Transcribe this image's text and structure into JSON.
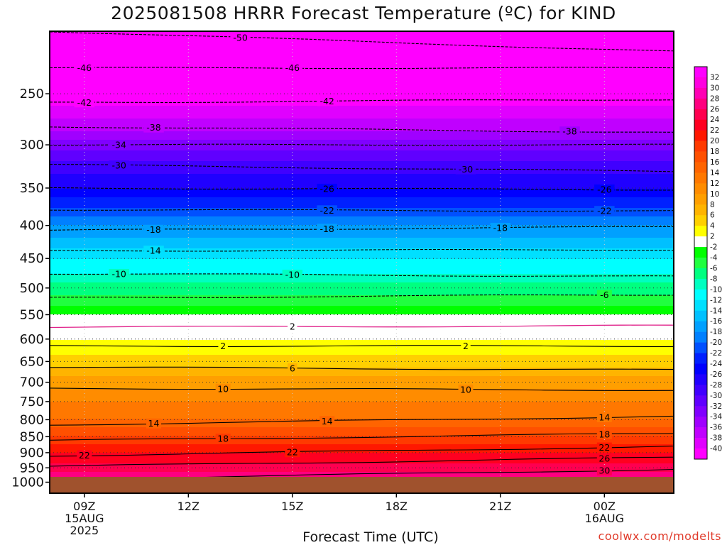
{
  "title": "2025081508 HRRR Forecast Temperature (ºC) for KIND",
  "xlabel": "Forecast Time (UTC)",
  "credit": "coolwx.com/modelts",
  "colorbar": {
    "labels": [
      "32",
      "30",
      "28",
      "26",
      "24",
      "22",
      "20",
      "18",
      "16",
      "14",
      "12",
      "10",
      "8",
      "6",
      "4",
      "2",
      "-2",
      "-4",
      "-6",
      "-8",
      "-10",
      "-12",
      "-14",
      "-16",
      "-18",
      "-20",
      "-22",
      "-24",
      "-26",
      "-28",
      "-30",
      "-32",
      "-34",
      "-36",
      "-38",
      "-40"
    ],
    "colors": [
      "#ff00ff",
      "#ff00e0",
      "#ff00b4",
      "#ff0080",
      "#ff0050",
      "#ff0020",
      "#ff1800",
      "#ff3a00",
      "#ff5000",
      "#ff6400",
      "#ff7800",
      "#ff8c00",
      "#ff9f00",
      "#ffb400",
      "#ffd000",
      "#ffff00",
      "#ffffff",
      "#00ff00",
      "#20ff40",
      "#00ff80",
      "#00ffc0",
      "#00ffff",
      "#00e0ff",
      "#00c0ff",
      "#00a0ff",
      "#0080ff",
      "#0050ff",
      "#0020ff",
      "#0000ff",
      "#2000ff",
      "#4000ff",
      "#6000ff",
      "#8000ff",
      "#a000ff",
      "#c000ff",
      "#e000ff",
      "#ff00ff"
    ]
  },
  "chart_data": {
    "type": "heatmap",
    "title": "2025081508 HRRR Forecast Temperature (ºC) for KIND",
    "xlabel": "Forecast Time (UTC)",
    "ylabel": "",
    "x_ticks": [
      {
        "label": "09Z",
        "sub": [
          "15AUG",
          "2025"
        ],
        "hour": 9
      },
      {
        "label": "12Z",
        "sub": [],
        "hour": 12
      },
      {
        "label": "15Z",
        "sub": [],
        "hour": 15
      },
      {
        "label": "18Z",
        "sub": [],
        "hour": 18
      },
      {
        "label": "21Z",
        "sub": [],
        "hour": 21
      },
      {
        "label": "00Z",
        "sub": [
          "16AUG"
        ],
        "hour": 24
      }
    ],
    "x_range_hours": [
      8,
      26
    ],
    "y_ticks": [
      250,
      300,
      350,
      400,
      450,
      500,
      550,
      600,
      650,
      700,
      750,
      800,
      850,
      900,
      950,
      1000
    ],
    "y_range_hPa": [
      200,
      1040
    ],
    "y_scale": "log",
    "grid": "dotted",
    "colorbar_range": [
      -40,
      32
    ],
    "temperature_profile": [
      {
        "p": 200,
        "t": -58
      },
      {
        "p": 215,
        "t": -52
      },
      {
        "p": 225,
        "t": -48
      },
      {
        "p": 250,
        "t": -42
      },
      {
        "p": 280,
        "t": -37
      },
      {
        "p": 300,
        "t": -33
      },
      {
        "p": 325,
        "t": -29
      },
      {
        "p": 350,
        "t": -26
      },
      {
        "p": 375,
        "t": -22
      },
      {
        "p": 400,
        "t": -18
      },
      {
        "p": 425,
        "t": -15
      },
      {
        "p": 450,
        "t": -12
      },
      {
        "p": 475,
        "t": -10
      },
      {
        "p": 500,
        "t": -7
      },
      {
        "p": 525,
        "t": -5
      },
      {
        "p": 550,
        "t": -2
      },
      {
        "p": 575,
        "t": 0
      },
      {
        "p": 600,
        "t": 2
      },
      {
        "p": 650,
        "t": 5
      },
      {
        "p": 700,
        "t": 9
      },
      {
        "p": 750,
        "t": 12
      },
      {
        "p": 800,
        "t": 14
      },
      {
        "p": 850,
        "t": 18
      },
      {
        "p": 900,
        "t": 22
      },
      {
        "p": 950,
        "t": 25
      },
      {
        "p": 1000,
        "t": 29
      }
    ],
    "contours": [
      {
        "level": "-50",
        "label_hours": [
          13.5
        ],
        "p_levels": [
          200,
          215
        ]
      },
      {
        "level": "-46",
        "label_hours": [
          9,
          15
        ],
        "p_levels": [
          228,
          228
        ]
      },
      {
        "level": "-42",
        "label_hours": [
          9,
          16
        ],
        "p_levels": [
          258,
          255
        ]
      },
      {
        "level": "-38",
        "label_hours": [
          11,
          23
        ],
        "p_levels": [
          281,
          287
        ]
      },
      {
        "level": "-34",
        "label_hours": [
          10
        ],
        "p_levels": [
          300,
          300
        ]
      },
      {
        "level": "-30",
        "label_hours": [
          10,
          20
        ],
        "p_levels": [
          322,
          330
        ]
      },
      {
        "level": "-26",
        "label_hours": [
          16,
          24
        ],
        "p_levels": [
          350,
          352
        ]
      },
      {
        "level": "-22",
        "label_hours": [
          16,
          24
        ],
        "p_levels": [
          378,
          380
        ]
      },
      {
        "level": "-18",
        "label_hours": [
          11,
          16,
          21
        ],
        "p_levels": [
          407,
          402
        ]
      },
      {
        "level": "-14",
        "label_hours": [
          11
        ],
        "p_levels": [
          438,
          436
        ]
      },
      {
        "level": "-10",
        "label_hours": [
          10,
          15
        ],
        "p_levels": [
          475,
          480
        ]
      },
      {
        "level": "-6",
        "label_hours": [
          24
        ],
        "p_levels": [
          518,
          512
        ]
      },
      {
        "level": "2",
        "label_hours": [
          13,
          20
        ],
        "p_levels": [
          615,
          615
        ]
      },
      {
        "level": "6",
        "label_hours": [
          15
        ],
        "p_levels": [
          663,
          670
        ]
      },
      {
        "level": "10",
        "label_hours": [
          13,
          20
        ],
        "p_levels": [
          715,
          720
        ]
      },
      {
        "level": "14",
        "label_hours": [
          11,
          16,
          24
        ],
        "p_levels": [
          815,
          790
        ]
      },
      {
        "level": "18",
        "label_hours": [
          13,
          24
        ],
        "p_levels": [
          862,
          840
        ]
      },
      {
        "level": "22",
        "label_hours": [
          9,
          15,
          24
        ],
        "p_levels": [
          910,
          880
        ]
      },
      {
        "level": "26",
        "label_hours": [
          24
        ],
        "p_levels": [
          945,
          915
        ]
      },
      {
        "level": "30",
        "label_hours": [
          24
        ],
        "p_levels": [
          990,
          955
        ]
      },
      {
        "level": "22",
        "label_hours": [
          10
        ],
        "p_levels": [
          1010,
          1010
        ]
      },
      {
        "level": "2",
        "label_hours": [
          15
        ],
        "p_levels": [
          575,
          572
        ]
      }
    ],
    "freezing_level_hPa": [
      575,
      572
    ]
  }
}
